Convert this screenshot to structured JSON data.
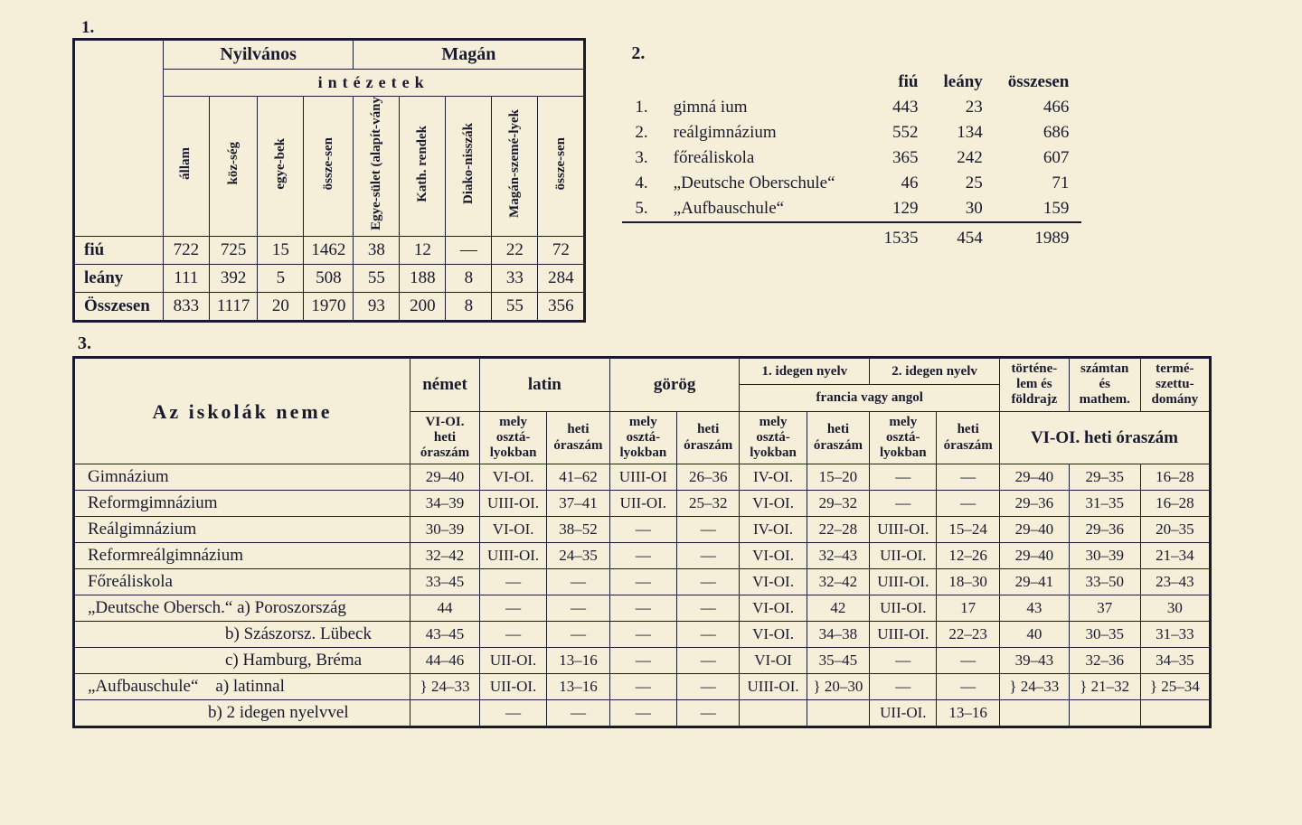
{
  "labels": {
    "one": "1.",
    "two": "2.",
    "three": "3."
  },
  "t1": {
    "groupA": "Nyilvános",
    "groupB": "Magán",
    "subheader": "intézetek",
    "cols": [
      "állam",
      "köz-ség",
      "egye-bek",
      "össze-sen",
      "Egye-sület (alapít-vány",
      "Kath. rendek",
      "Diako-nisszák",
      "Magán-szemé-lyek",
      "össze-sen"
    ],
    "rows": [
      {
        "name": "fiú",
        "v": [
          "722",
          "725",
          "15",
          "1462",
          "38",
          "12",
          "—",
          "22",
          "72"
        ]
      },
      {
        "name": "leány",
        "v": [
          "111",
          "392",
          "5",
          "508",
          "55",
          "188",
          "8",
          "33",
          "284"
        ]
      },
      {
        "name": "Összesen",
        "v": [
          "833",
          "1117",
          "20",
          "1970",
          "93",
          "200",
          "8",
          "55",
          "356"
        ]
      }
    ]
  },
  "t2": {
    "head": [
      "fiú",
      "leány",
      "összesen"
    ],
    "rows": [
      {
        "n": "1.",
        "name": "gimná ium",
        "v": [
          "443",
          "23",
          "466"
        ]
      },
      {
        "n": "2.",
        "name": "reálgimnázium",
        "v": [
          "552",
          "134",
          "686"
        ]
      },
      {
        "n": "3.",
        "name": "főreáliskola",
        "v": [
          "365",
          "242",
          "607"
        ]
      },
      {
        "n": "4.",
        "name": "„Deutsche Oberschule“",
        "v": [
          "46",
          "25",
          "71"
        ]
      },
      {
        "n": "5.",
        "name": "„Aufbauschule“",
        "v": [
          "129",
          "30",
          "159"
        ]
      }
    ],
    "total": [
      "1535",
      "454",
      "1989"
    ]
  },
  "t3": {
    "title": "Az iskolák neme",
    "top": {
      "nemet": "német",
      "latin": "latin",
      "gorog": "görög",
      "fl1": "1. idegen nyelv",
      "fl2": "2. idegen nyelv",
      "flsub": "francia vagy angol",
      "hist": "történe-lem és földrajz",
      "math": "számtan és mathem.",
      "nat": "termé-szettu-domány",
      "vioi": "VI-OI.",
      "hetio": "heti óraszám",
      "mely": "mely osztá-lyokban",
      "heti": "heti óraszám",
      "vioiHeti": "VI-OI. heti óraszám"
    },
    "rows": [
      {
        "name": "Gimnázium",
        "v": [
          "29–40",
          "VI-OI.",
          "41–62",
          "UIII-OI",
          "26–36",
          "IV-OI.",
          "15–20",
          "—",
          "—",
          "29–40",
          "29–35",
          "16–28"
        ]
      },
      {
        "name": "Reformgimnázium",
        "v": [
          "34–39",
          "UIII-OI.",
          "37–41",
          "UII-OI.",
          "25–32",
          "VI-OI.",
          "29–32",
          "—",
          "—",
          "29–36",
          "31–35",
          "16–28"
        ]
      },
      {
        "name": "Reálgimnázium",
        "v": [
          "30–39",
          "VI-OI.",
          "38–52",
          "—",
          "—",
          "IV-OI.",
          "22–28",
          "UIII-OI.",
          "15–24",
          "29–40",
          "29–36",
          "20–35"
        ]
      },
      {
        "name": "Reformreálgimnázium",
        "v": [
          "32–42",
          "UIII-OI.",
          "24–35",
          "—",
          "—",
          "VI-OI.",
          "32–43",
          "UII-OI.",
          "12–26",
          "29–40",
          "30–39",
          "21–34"
        ]
      },
      {
        "name": "Főreáliskola",
        "v": [
          "33–45",
          "—",
          "—",
          "—",
          "—",
          "VI-OI.",
          "32–42",
          "UIII-OI.",
          "18–30",
          "29–41",
          "33–50",
          "23–43"
        ]
      },
      {
        "name": "„Deutsche Obersch.“ a) Poroszország",
        "v": [
          "44",
          "—",
          "—",
          "—",
          "—",
          "VI-OI.",
          "42",
          "UII-OI.",
          "17",
          "43",
          "37",
          "30"
        ]
      },
      {
        "name": "        b) Szászorsz. Lübeck",
        "v": [
          "43–45",
          "—",
          "—",
          "—",
          "—",
          "VI-OI.",
          "34–38",
          "UIII-OI.",
          "22–23",
          "40",
          "30–35",
          "31–33"
        ]
      },
      {
        "name": "        c) Hamburg, Bréma",
        "v": [
          "44–46",
          "UII-OI.",
          "13–16",
          "—",
          "—",
          "VI-OI",
          "35–45",
          "—",
          "—",
          "39–43",
          "32–36",
          "34–35"
        ]
      },
      {
        "name": "„Aufbauschule“ a) latinnal",
        "v": [
          "} 24–33",
          "UII-OI.",
          "13–16",
          "—",
          "—",
          "UIII-OI.",
          "} 20–30",
          "—",
          "—",
          "} 24–33",
          "} 21–32",
          "} 25–34"
        ]
      },
      {
        "name": "       b) 2 idegen nyelvvel",
        "v": [
          "",
          "—",
          "—",
          "—",
          "—",
          "",
          "",
          "UII-OI.",
          "13–16",
          "",
          "",
          ""
        ]
      }
    ]
  }
}
